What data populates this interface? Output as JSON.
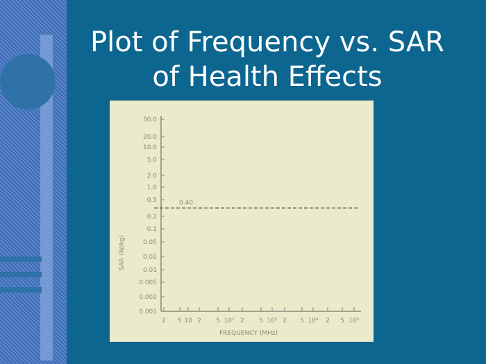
{
  "slide": {
    "title_lines": [
      "Plot of Frequency vs. SAR",
      "of Health Effects"
    ]
  },
  "figure": {
    "y_axis_label": "SAR (W/kg)",
    "x_axis_label": "FREQUENCY (MHz)",
    "threshold_label": "0.40",
    "y_tick_labels": [
      "50.0",
      "20.0",
      "10.0",
      "5.0",
      "2.0",
      "1.0",
      "0.5",
      "0.2",
      "0.1",
      "0.05",
      "0.02",
      "0.01",
      "0.005",
      "0.002",
      "0.001"
    ],
    "x_tick_labels": [
      "2",
      "5",
      "10",
      "2",
      "5",
      "10²",
      "2",
      "5",
      "10³",
      "2",
      "5",
      "10⁴",
      "2",
      "5",
      "10⁵"
    ]
  }
}
